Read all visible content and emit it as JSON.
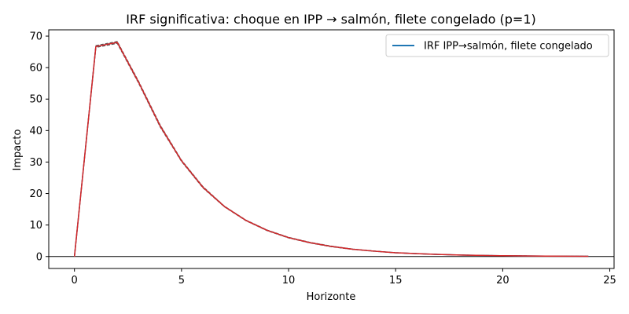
{
  "chart_data": {
    "type": "line",
    "title": "IRF significativa: choque en IPP → salmón, filete congelado (p=1)",
    "xlabel": "Horizonte",
    "ylabel": "Impacto",
    "xlim": [
      -1.2,
      25.2
    ],
    "ylim": [
      -3.8,
      72.0
    ],
    "xticks": [
      0,
      5,
      10,
      15,
      20,
      25
    ],
    "yticks": [
      0,
      10,
      20,
      30,
      40,
      50,
      60,
      70
    ],
    "legend_position": "upper right",
    "x": [
      0,
      1,
      2,
      3,
      4,
      5,
      6,
      7,
      8,
      9,
      10,
      11,
      12,
      13,
      14,
      15,
      16,
      17,
      18,
      19,
      20,
      21,
      22,
      23,
      24
    ],
    "series": [
      {
        "name": "IRF IPP→salmón, filete congelado",
        "color": "#1f77b4",
        "style": "solid",
        "values": [
          0,
          66.7,
          68.0,
          55.3,
          41.5,
          30.4,
          22.0,
          15.9,
          11.5,
          8.3,
          6.0,
          4.4,
          3.2,
          2.3,
          1.7,
          1.2,
          0.9,
          0.65,
          0.47,
          0.34,
          0.25,
          0.18,
          0.13,
          0.1,
          0.07
        ]
      },
      {
        "name": "",
        "color": "#555555",
        "style": "dashed",
        "values": [
          0,
          66.4,
          67.7,
          55.0,
          41.2,
          30.2,
          21.8,
          15.8,
          11.4,
          8.2,
          5.9,
          4.3,
          3.1,
          2.25,
          1.65,
          1.18,
          0.88,
          0.63,
          0.46,
          0.33,
          0.24,
          0.17,
          0.12,
          0.09,
          0.06
        ]
      },
      {
        "name": "",
        "color": "#555555",
        "style": "dashed",
        "values": [
          0,
          67.0,
          68.3,
          55.6,
          41.8,
          30.6,
          22.2,
          16.0,
          11.6,
          8.4,
          6.1,
          4.5,
          3.3,
          2.35,
          1.75,
          1.22,
          0.92,
          0.67,
          0.48,
          0.35,
          0.26,
          0.19,
          0.14,
          0.11,
          0.08
        ]
      },
      {
        "name": "",
        "color": "#d62728",
        "style": "solid",
        "values": [
          0,
          66.7,
          68.0,
          55.3,
          41.5,
          30.4,
          22.0,
          15.9,
          11.5,
          8.3,
          6.0,
          4.4,
          3.2,
          2.3,
          1.7,
          1.2,
          0.9,
          0.65,
          0.47,
          0.34,
          0.25,
          0.18,
          0.13,
          0.1,
          0.07
        ]
      }
    ],
    "zero_line": true
  }
}
